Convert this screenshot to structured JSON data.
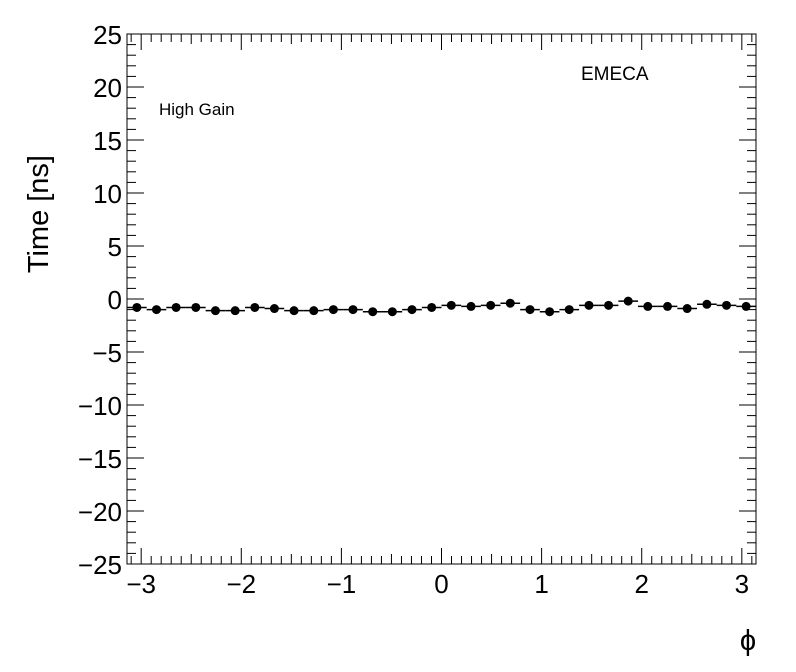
{
  "chart_data": {
    "type": "scatter",
    "title": "",
    "xlabel": "ϕ",
    "ylabel": "Time [ns]",
    "xlim": [
      -3.1416,
      3.1416
    ],
    "ylim": [
      -25,
      25
    ],
    "x_ticks": [
      -3,
      -2,
      -1,
      0,
      1,
      2,
      3
    ],
    "x_tick_labels": [
      "−3",
      "−2",
      "−1",
      "0",
      "1",
      "2",
      "3"
    ],
    "y_ticks": [
      -25,
      -20,
      -15,
      -10,
      -5,
      0,
      5,
      10,
      15,
      20,
      25
    ],
    "y_tick_labels": [
      "−25",
      "−20",
      "−15",
      "−10",
      "−5",
      "0",
      "5",
      "10",
      "15",
      "20",
      "25"
    ],
    "annotations": [
      "EMECA",
      "High Gain"
    ],
    "marker_color": "#000000",
    "grid": false,
    "series": [
      {
        "x": [
          -3.043,
          -2.847,
          -2.651,
          -2.454,
          -2.258,
          -2.061,
          -1.865,
          -1.669,
          -1.473,
          -1.276,
          -1.08,
          -0.884,
          -0.687,
          -0.491,
          -0.295,
          -0.098,
          0.098,
          0.295,
          0.491,
          0.687,
          0.884,
          1.08,
          1.276,
          1.473,
          1.669,
          1.865,
          2.061,
          2.258,
          2.454,
          2.651,
          2.847,
          3.043
        ],
        "y": [
          -0.8,
          -1.0,
          -0.8,
          -0.8,
          -1.1,
          -1.1,
          -0.8,
          -0.9,
          -1.1,
          -1.1,
          -1.0,
          -1.0,
          -1.2,
          -1.2,
          -1.0,
          -0.8,
          -0.6,
          -0.7,
          -0.6,
          -0.4,
          -1.0,
          -1.2,
          -1.0,
          -0.6,
          -0.6,
          -0.2,
          -0.7,
          -0.7,
          -0.9,
          -0.5,
          -0.6,
          -0.7
        ]
      }
    ]
  }
}
